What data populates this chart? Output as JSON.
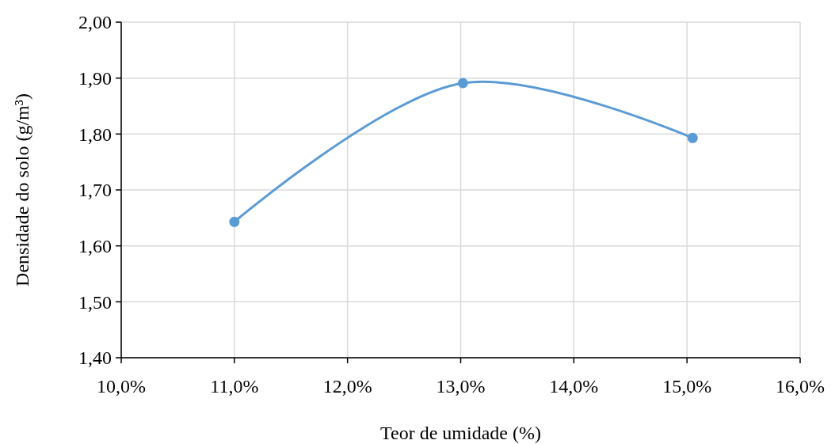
{
  "chart_data": {
    "type": "line",
    "xlabel": "Teor de umidade (%)",
    "ylabel": "Densidade do solo (g/m³)",
    "x": [
      11.0,
      13.02,
      15.05
    ],
    "series": [
      {
        "color": "#5b9bd5",
        "values": [
          1.643,
          1.891,
          1.793
        ]
      }
    ],
    "xlim": [
      10,
      16
    ],
    "xticks": [
      {
        "value": 10,
        "label": "10,0%"
      },
      {
        "value": 11,
        "label": "11,0%"
      },
      {
        "value": 12,
        "label": "12,0%"
      },
      {
        "value": 13,
        "label": "13,0%"
      },
      {
        "value": 14,
        "label": "14,0%"
      },
      {
        "value": 15,
        "label": "15,0%"
      },
      {
        "value": 16,
        "label": "16,0%"
      }
    ],
    "ylim": [
      1.4,
      2.0
    ],
    "yticks": [
      {
        "value": 1.4,
        "label": "1,40"
      },
      {
        "value": 1.5,
        "label": "1,50"
      },
      {
        "value": 1.6,
        "label": "1,60"
      },
      {
        "value": 1.7,
        "label": "1,70"
      },
      {
        "value": 1.8,
        "label": "1,80"
      },
      {
        "value": 1.9,
        "label": "1,90"
      },
      {
        "value": 2.0,
        "label": "2,00"
      }
    ],
    "grid": true,
    "marker": "circle",
    "line_style": "solid"
  }
}
